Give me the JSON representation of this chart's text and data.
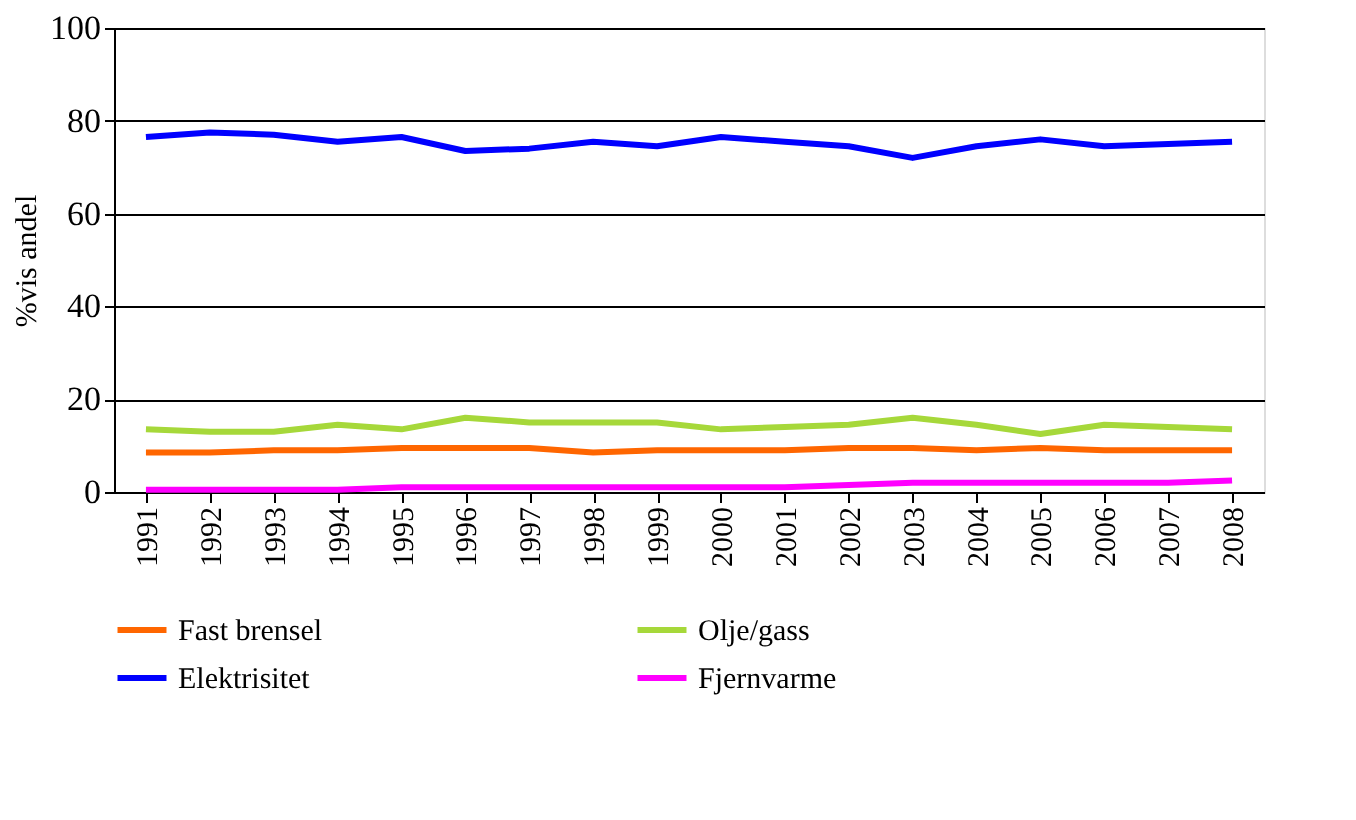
{
  "chart_data": {
    "type": "line",
    "ylabel": "%vis andel",
    "categories": [
      "1991",
      "1992",
      "1993",
      "1994",
      "1995",
      "1996",
      "1997",
      "1998",
      "1999",
      "2000",
      "2001",
      "2002",
      "2003",
      "2004",
      "2005",
      "2006",
      "2007",
      "2008"
    ],
    "ylim": [
      0,
      100
    ],
    "yticks": [
      0,
      20,
      40,
      60,
      80,
      100
    ],
    "grid": "y",
    "legend": "bottom",
    "marker": "none",
    "line_style": "solid",
    "series": [
      {
        "name": "Fast brensel",
        "color": "#ff6600",
        "values": [
          8.5,
          8.5,
          9,
          9,
          9.5,
          9.5,
          9.5,
          8.5,
          9,
          9,
          9,
          9.5,
          9.5,
          9,
          9.5,
          9,
          9,
          9
        ]
      },
      {
        "name": "Olje/gass",
        "color": "#a6d83a",
        "values": [
          13.5,
          13,
          13,
          14.5,
          13.5,
          16,
          15,
          15,
          15,
          13.5,
          14,
          14.5,
          16,
          14.5,
          12.5,
          14.5,
          14,
          13.5
        ]
      },
      {
        "name": "Elektrisitet",
        "color": "#0000ff",
        "values": [
          76.5,
          77.5,
          77,
          75.5,
          76.5,
          73.5,
          74,
          75.5,
          74.5,
          76.5,
          75.5,
          74.5,
          72,
          74.5,
          76,
          74.5,
          75,
          75.5
        ]
      },
      {
        "name": "Fjernvarme",
        "color": "#ff00ff",
        "values": [
          0.5,
          0.5,
          0.5,
          0.5,
          1,
          1,
          1,
          1,
          1,
          1,
          1,
          1.5,
          2,
          2,
          2,
          2,
          2,
          2.5
        ]
      }
    ]
  }
}
